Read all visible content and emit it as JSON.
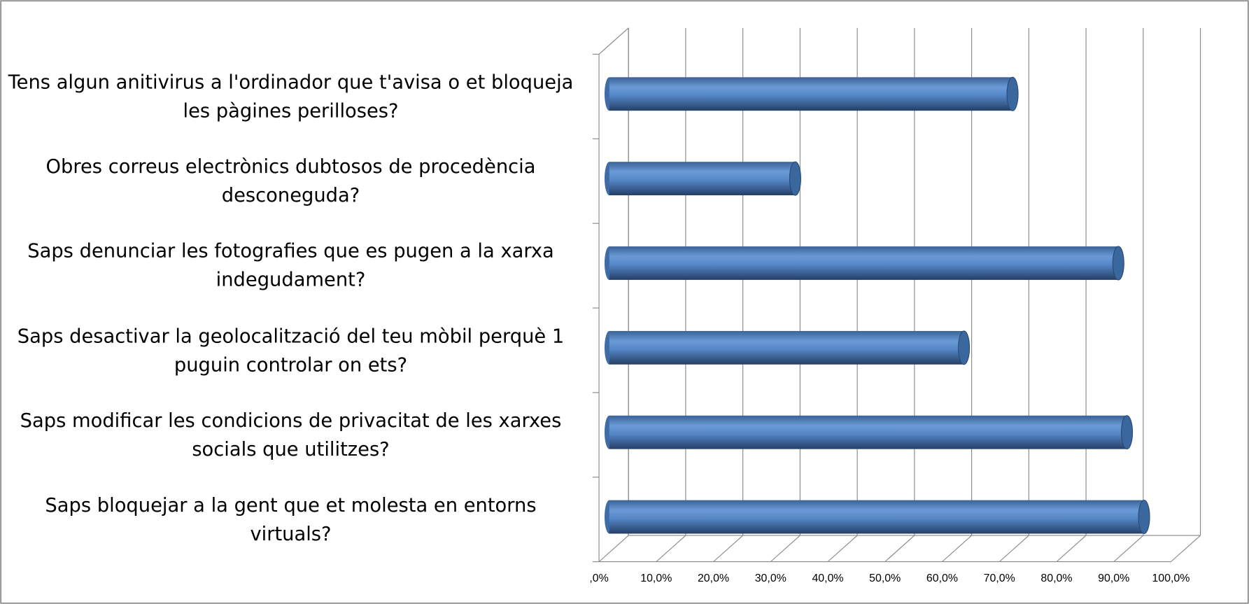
{
  "chart_data": {
    "type": "bar3d",
    "categories": [
      "Tens algun anitivirus a l'ordinador que t'avisa o et bloqueja les pàgines perilloses?",
      "Obres correus electrònics dubtosos de procedència desconeguda?",
      "Saps denunciar les fotografies que es pugen a la xarxa indegudament?",
      "Saps desactivar la geolocalització del teu mòbil perquè 1 puguin controlar on ets?",
      "Saps modificar les condicions de privacitat de les xarxes socials que utilitzes?",
      "Saps bloquejar a la gent que et molesta en entorns virtuals?"
    ],
    "values": [
      70.5,
      32.5,
      89,
      62,
      90.5,
      93.5
    ],
    "color": "#4f81bd",
    "xlim": [
      0,
      100
    ],
    "xticks": [
      {
        "value": 0,
        "label": ",0%"
      },
      {
        "value": 10,
        "label": "10,0%"
      },
      {
        "value": 20,
        "label": "20,0%"
      },
      {
        "value": 30,
        "label": "30,0%"
      },
      {
        "value": 40,
        "label": "40,0%"
      },
      {
        "value": 50,
        "label": "50,0%"
      },
      {
        "value": 60,
        "label": "60,0%"
      },
      {
        "value": 70,
        "label": "70,0%"
      },
      {
        "value": 80,
        "label": "80,0%"
      },
      {
        "value": 90,
        "label": "90,0%"
      },
      {
        "value": 100,
        "label": "100,0%"
      }
    ],
    "grid": true
  }
}
